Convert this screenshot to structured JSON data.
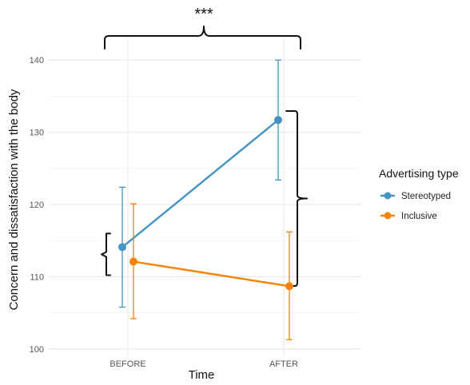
{
  "chart_data": {
    "type": "line",
    "x": [
      "BEFORE",
      "AFTER"
    ],
    "xlabel": "Time",
    "ylabel": "Concern and dissatisfaction with the body",
    "ylim": [
      99,
      143
    ],
    "yticks": [
      100,
      110,
      120,
      130,
      140
    ],
    "grid": true,
    "legend": {
      "title": "Advertising type",
      "position": "right"
    },
    "series": [
      {
        "name": "Stereotyped",
        "color": "#4393C3",
        "values": [
          114.1,
          131.7
        ],
        "error_low": [
          105.8,
          123.4
        ],
        "error_high": [
          122.4,
          140.0
        ]
      },
      {
        "name": "Inclusive",
        "color": "#F5820A",
        "values": [
          112.1,
          108.7
        ],
        "error_low": [
          104.2,
          101.3
        ],
        "error_high": [
          120.1,
          116.2
        ]
      }
    ],
    "annotations": [
      {
        "text": "***"
      }
    ]
  }
}
